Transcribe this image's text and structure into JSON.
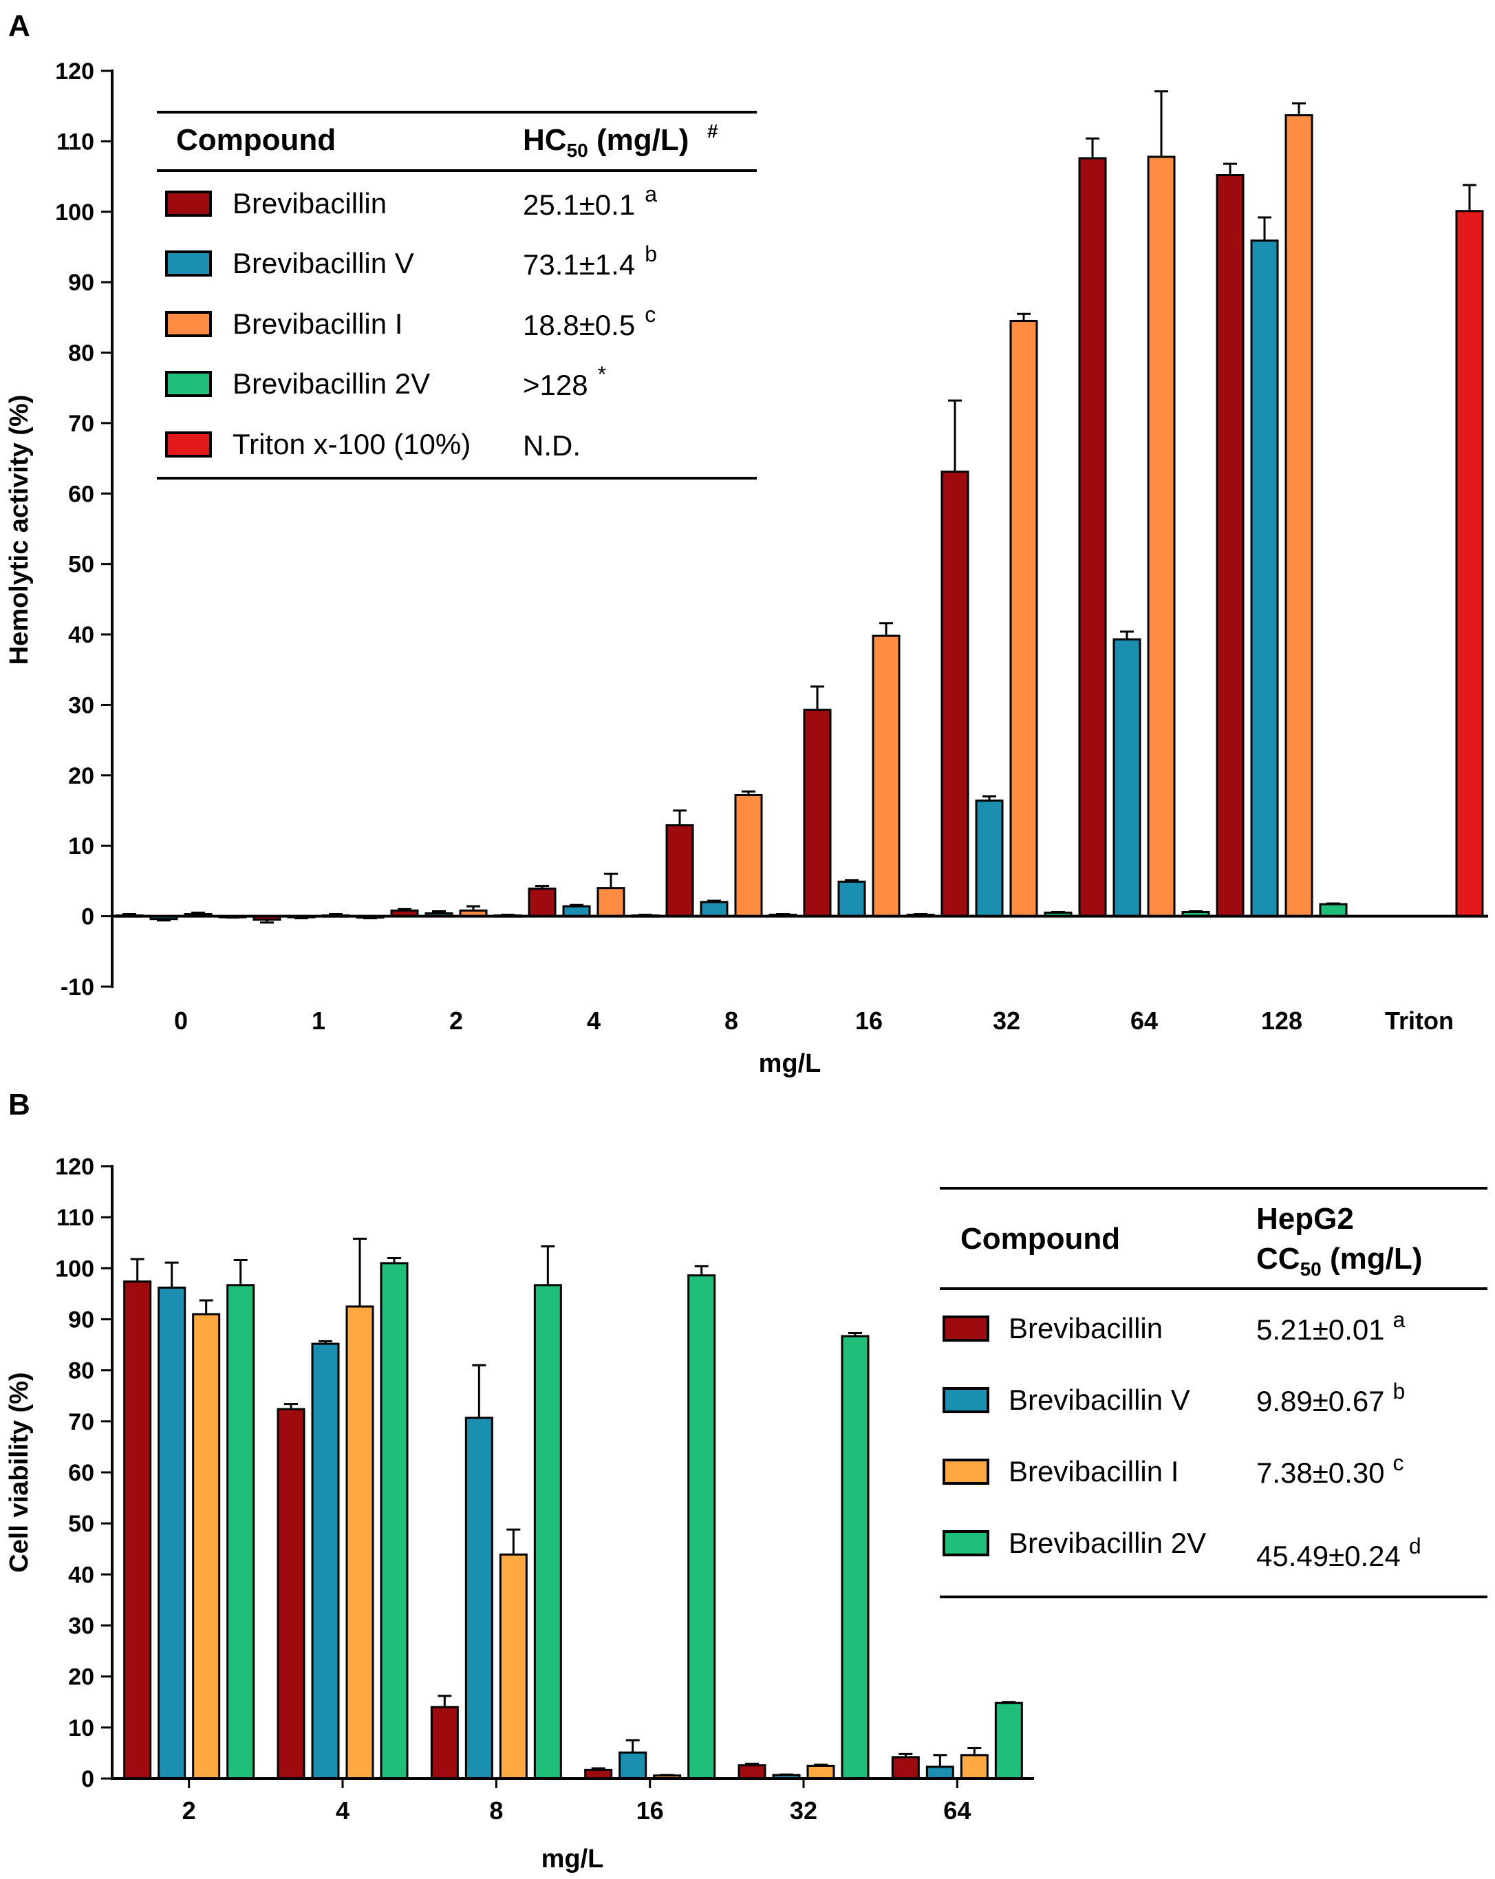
{
  "figure": {
    "panel_labels": [
      "A",
      "B"
    ]
  },
  "chart_data": [
    {
      "type": "bar",
      "panel": "A",
      "xlabel": "mg/L",
      "ylabel": "Hemolytic activity (%)",
      "ylim": [
        -10,
        120
      ],
      "yticks": [
        -10,
        0,
        10,
        20,
        30,
        40,
        50,
        60,
        70,
        80,
        90,
        100,
        110,
        120
      ],
      "categories": [
        "0",
        "1",
        "2",
        "4",
        "8",
        "16",
        "32",
        "64",
        "128",
        "Triton"
      ],
      "series": [
        {
          "name": "Brevibacillin",
          "color": "#9e0b0f",
          "values": [
            0.1,
            -0.5,
            0.8,
            3.9,
            12.9,
            29.3,
            63.1,
            107.6,
            105.2,
            null
          ],
          "errors": [
            0.2,
            0.4,
            0.2,
            0.4,
            2.1,
            3.3,
            10.1,
            2.8,
            1.6,
            null
          ]
        },
        {
          "name": "Brevibacillin V",
          "color": "#1a8fb0",
          "values": [
            -0.4,
            -0.1,
            0.4,
            1.4,
            2.0,
            4.9,
            16.4,
            39.3,
            95.9,
            null
          ],
          "errors": [
            0.2,
            0.2,
            0.3,
            0.2,
            0.2,
            0.2,
            0.6,
            1.1,
            3.3,
            null
          ]
        },
        {
          "name": "Brevibacillin I",
          "color": "#ff8c42",
          "values": [
            0.3,
            0.1,
            0.8,
            4.0,
            17.2,
            39.8,
            84.5,
            107.8,
            113.7,
            null
          ],
          "errors": [
            0.2,
            0.2,
            0.6,
            2.0,
            0.5,
            1.8,
            1.0,
            9.3,
            1.7,
            null
          ]
        },
        {
          "name": "Brevibacillin 2V",
          "color": "#1fbf7a",
          "values": [
            -0.1,
            -0.2,
            0.1,
            0.1,
            0.2,
            0.2,
            0.5,
            0.6,
            1.7,
            null
          ],
          "errors": [
            0.1,
            0.1,
            0.1,
            0.1,
            0.1,
            0.1,
            0.1,
            0.1,
            0.1,
            null
          ]
        },
        {
          "name": "Triton x-100 (10%)",
          "color": "#e3191c",
          "values": [
            null,
            null,
            null,
            null,
            null,
            null,
            null,
            null,
            null,
            100.1
          ],
          "errors": [
            null,
            null,
            null,
            null,
            null,
            null,
            null,
            null,
            null,
            3.7
          ]
        }
      ],
      "legend_table": {
        "header_compound": "Compound",
        "header_value_main": "HC",
        "header_value_sub": "50",
        "header_value_tail": " (mg/L)",
        "header_value_sup": "#",
        "rows": [
          {
            "name": "Brevibacillin",
            "value": "25.1±0.1",
            "sup": "a",
            "color": "#9e0b0f"
          },
          {
            "name": "Brevibacillin V",
            "value": "73.1±1.4",
            "sup": "b",
            "color": "#1a8fb0"
          },
          {
            "name": "Brevibacillin I",
            "value": "18.8±0.5",
            "sup": "c",
            "color": "#ff8c42"
          },
          {
            "name": "Brevibacillin 2V",
            "value": ">128",
            "sup": "*",
            "color": "#1fbf7a"
          },
          {
            "name": "Triton x-100 (10%)",
            "value": "N.D.",
            "sup": "",
            "color": "#e3191c"
          }
        ]
      }
    },
    {
      "type": "bar",
      "panel": "B",
      "xlabel": "mg/L",
      "ylabel": "Cell viability (%)",
      "ylim": [
        0,
        120
      ],
      "yticks": [
        0,
        10,
        20,
        30,
        40,
        50,
        60,
        70,
        80,
        90,
        100,
        110,
        120
      ],
      "categories": [
        "2",
        "4",
        "8",
        "16",
        "32",
        "64"
      ],
      "series": [
        {
          "name": "Brevibacillin",
          "color": "#9e0b0f",
          "values": [
            97.4,
            72.4,
            14.0,
            1.7,
            2.6,
            4.2
          ],
          "errors": [
            4.4,
            1.0,
            2.2,
            0.3,
            0.3,
            0.6
          ]
        },
        {
          "name": "Brevibacillin V",
          "color": "#1a8fb0",
          "values": [
            96.2,
            85.2,
            70.7,
            5.1,
            0.7,
            2.3
          ],
          "errors": [
            4.9,
            0.5,
            10.3,
            2.4,
            0.1,
            2.3
          ]
        },
        {
          "name": "Brevibacillin I",
          "color": "#ffa940",
          "values": [
            91.0,
            92.5,
            43.9,
            0.6,
            2.5,
            4.6
          ],
          "errors": [
            2.7,
            13.3,
            4.9,
            0.1,
            0.2,
            1.4
          ]
        },
        {
          "name": "Brevibacillin 2V",
          "color": "#1fbf7a",
          "values": [
            96.7,
            101.0,
            96.7,
            98.6,
            86.7,
            14.8
          ],
          "errors": [
            4.9,
            1.0,
            7.6,
            1.8,
            0.6,
            0.2
          ]
        }
      ],
      "legend_table": {
        "header_compound": "Compound",
        "header_line1": "HepG2",
        "header_line2_main": "CC",
        "header_line2_sub": "50",
        "header_line2_tail": " (mg/L)",
        "rows": [
          {
            "name": "Brevibacillin",
            "value": "5.21±0.01",
            "sup": "a",
            "color": "#9e0b0f"
          },
          {
            "name": "Brevibacillin V",
            "value": "9.89±0.67",
            "sup": "b",
            "color": "#1a8fb0"
          },
          {
            "name": "Brevibacillin I",
            "value": "7.38±0.30",
            "sup": "c",
            "color": "#ffa940"
          },
          {
            "name": "Brevibacillin 2V",
            "value": "45.49±0.24",
            "sup": "d",
            "color": "#1fbf7a"
          }
        ]
      }
    }
  ]
}
